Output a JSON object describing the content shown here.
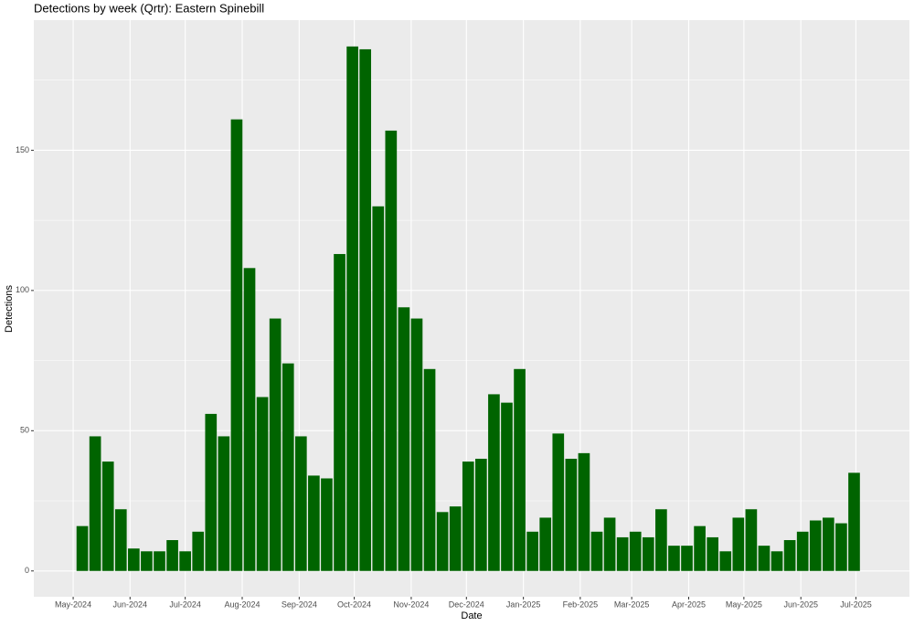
{
  "chart_data": {
    "type": "bar",
    "title": "Detections by week (Qrtr): Eastern Spinebill",
    "x_label": "Date",
    "y_label": "Detections",
    "color": "#006400",
    "categories": [
      null,
      null,
      null,
      null,
      null,
      null,
      null,
      null,
      null,
      null,
      null,
      null,
      null,
      null,
      null,
      null,
      null,
      null,
      null,
      null,
      null,
      null,
      null,
      null,
      null,
      null,
      null,
      null,
      null,
      null,
      null,
      null,
      null,
      null,
      null,
      null,
      null,
      null,
      null,
      null,
      null,
      null,
      null,
      null,
      null,
      null,
      null,
      null,
      null,
      null,
      null,
      null,
      null,
      null,
      null,
      null,
      null,
      null,
      null,
      null,
      null
    ],
    "values": [
      16,
      48,
      39,
      22,
      8,
      7,
      7,
      11,
      7,
      14,
      56,
      48,
      161,
      108,
      62,
      90,
      74,
      48,
      34,
      33,
      113,
      187,
      186,
      130,
      157,
      94,
      90,
      72,
      21,
      23,
      39,
      40,
      63,
      60,
      72,
      14,
      19,
      49,
      40,
      42,
      14,
      19,
      12,
      14,
      12,
      22,
      9,
      9,
      16,
      12,
      7,
      19,
      22,
      9,
      7,
      11,
      14,
      18,
      19,
      17,
      35
    ],
    "xlim": [
      -3.77,
      64.3
    ],
    "xticks": [
      {
        "value": -0.71,
        "label": "May-2024"
      },
      {
        "value": 3.71,
        "label": "Jun-2024"
      },
      {
        "value": 8.0,
        "label": "Jul-2024"
      },
      {
        "value": 12.43,
        "label": "Aug-2024"
      },
      {
        "value": 16.86,
        "label": "Sep-2024"
      },
      {
        "value": 21.14,
        "label": "Oct-2024"
      },
      {
        "value": 25.57,
        "label": "Nov-2024"
      },
      {
        "value": 29.86,
        "label": "Dec-2024"
      },
      {
        "value": 34.29,
        "label": "Jan-2025"
      },
      {
        "value": 38.71,
        "label": "Feb-2025"
      },
      {
        "value": 42.71,
        "label": "Mar-2025"
      },
      {
        "value": 47.14,
        "label": "Apr-2025"
      },
      {
        "value": 51.43,
        "label": "May-2025"
      },
      {
        "value": 55.86,
        "label": "Jun-2025"
      },
      {
        "value": 60.14,
        "label": "Jul-2025"
      }
    ],
    "ylim": [
      -9.2,
      196.4
    ],
    "yticks": [
      0,
      50,
      100,
      150
    ],
    "y_minor_grid": [
      25,
      75,
      125,
      175
    ],
    "grid": true
  }
}
